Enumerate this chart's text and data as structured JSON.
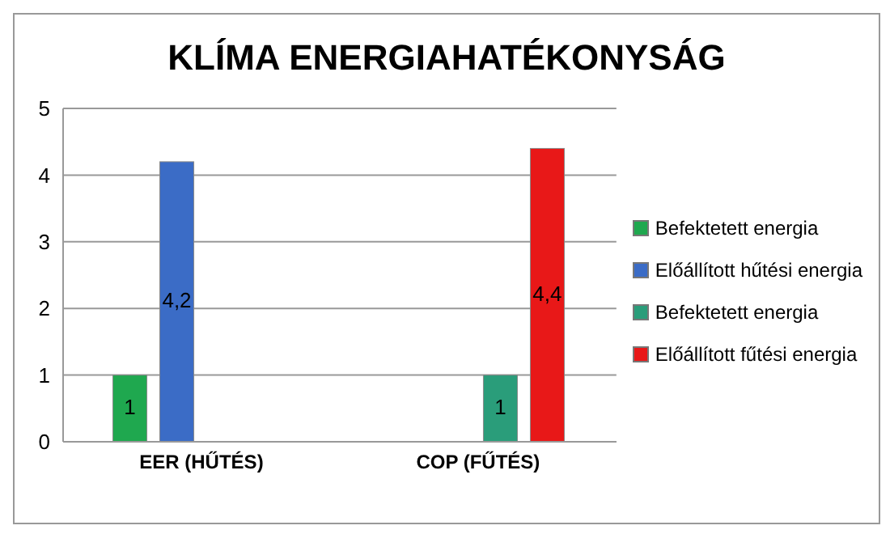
{
  "chart_data": {
    "type": "bar",
    "title": "KLÍMA ENERGIAHATÉKONYSÁG",
    "categories": [
      "EER (HŰTÉS)",
      "COP (FŰTÉS)"
    ],
    "series": [
      {
        "name": "Befektetett energia",
        "color": "#1fa84f",
        "values": [
          1,
          null
        ],
        "value_labels": [
          "1",
          null
        ]
      },
      {
        "name": "Előállított hűtési energia",
        "color": "#3b6cc6",
        "values": [
          4.2,
          null
        ],
        "value_labels": [
          "4,2",
          null
        ]
      },
      {
        "name": "Befektetett energia",
        "color": "#2a9d7a",
        "values": [
          null,
          1
        ],
        "value_labels": [
          null,
          "1"
        ]
      },
      {
        "name": "Előállított fűtési energia",
        "color": "#e81818",
        "values": [
          null,
          4.4
        ],
        "value_labels": [
          null,
          "4,4"
        ]
      }
    ],
    "ylim": [
      0,
      5
    ],
    "yticks": [
      0,
      1,
      2,
      3,
      4,
      5
    ],
    "grid": "y",
    "legend": "right"
  }
}
